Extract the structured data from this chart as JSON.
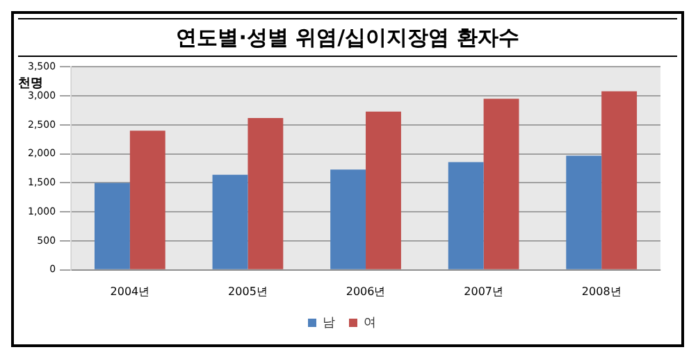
{
  "chart_data": {
    "type": "bar",
    "title": "연도별·성별 위염/십이지장염 환자수",
    "ylabel": "천명",
    "categories": [
      "2004년",
      "2005년",
      "2006년",
      "2007년",
      "2008년"
    ],
    "series": [
      {
        "name": "남",
        "color": "#4f81bd",
        "values": [
          1500,
          1640,
          1730,
          1860,
          1970
        ]
      },
      {
        "name": "여",
        "color": "#c0504d",
        "values": [
          2400,
          2620,
          2730,
          2950,
          3080
        ]
      }
    ],
    "ylim": [
      0,
      3500
    ],
    "yticks": [
      {
        "value": 0,
        "label": "0"
      },
      {
        "value": 500,
        "label": "500"
      },
      {
        "value": 1000,
        "label": "1,000"
      },
      {
        "value": 1500,
        "label": "1,500"
      },
      {
        "value": 2000,
        "label": "2,000"
      },
      {
        "value": 2500,
        "label": "2,500"
      },
      {
        "value": 3000,
        "label": "3,000"
      },
      {
        "value": 3500,
        "label": "3,500"
      }
    ],
    "grid": "y",
    "legend": "bottom"
  }
}
